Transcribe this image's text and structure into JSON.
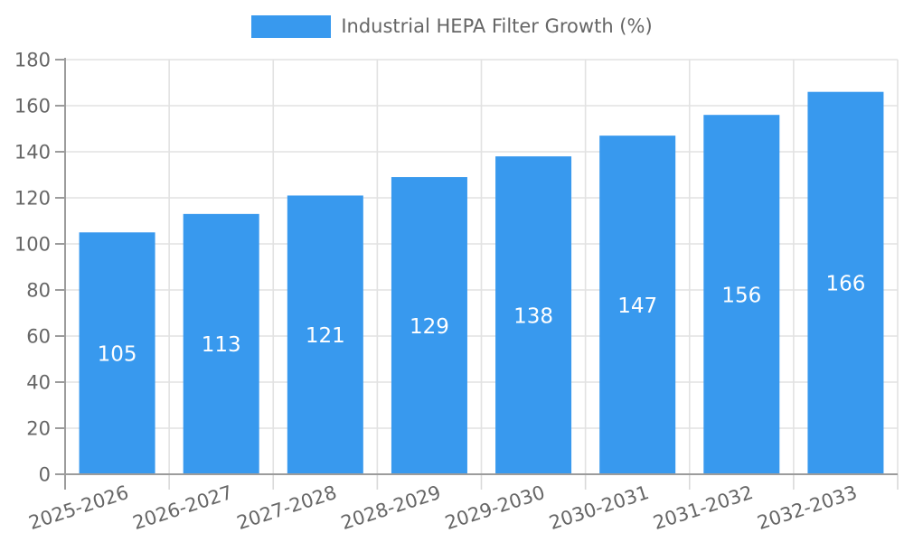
{
  "legend": {
    "label": "Industrial HEPA Filter Growth (%)",
    "swatch_color": "#3899EE",
    "text_color": "#666666"
  },
  "chart_data": {
    "type": "bar",
    "title": "Industrial HEPA Filter Growth (%)",
    "categories": [
      "2025-2026",
      "2026-2027",
      "2027-2028",
      "2028-2029",
      "2029-2030",
      "2030-2031",
      "2031-2032",
      "2032-2033"
    ],
    "values": [
      105,
      113,
      121,
      129,
      138,
      147,
      156,
      166
    ],
    "value_labels": [
      "105",
      "113",
      "121",
      "129",
      "138",
      "147",
      "156",
      "166"
    ],
    "ytick_labels": [
      "0",
      "20",
      "40",
      "60",
      "80",
      "100",
      "120",
      "140",
      "160",
      "180"
    ],
    "yticks": [
      0,
      20,
      40,
      60,
      80,
      100,
      120,
      140,
      160,
      180
    ],
    "ylim": [
      0,
      180
    ],
    "xlabel": "",
    "ylabel": "",
    "grid": true,
    "legend_position": "top",
    "x_label_rotation_deg": -18,
    "colors": {
      "bar": "#3899EE",
      "bar_value_text": "#ffffff",
      "grid_line": "#e2e2e2",
      "axis_line": "#9c9c9c",
      "x_tick_line": "#d9d9d9",
      "tick_text": "#666666",
      "background": "#ffffff"
    }
  }
}
